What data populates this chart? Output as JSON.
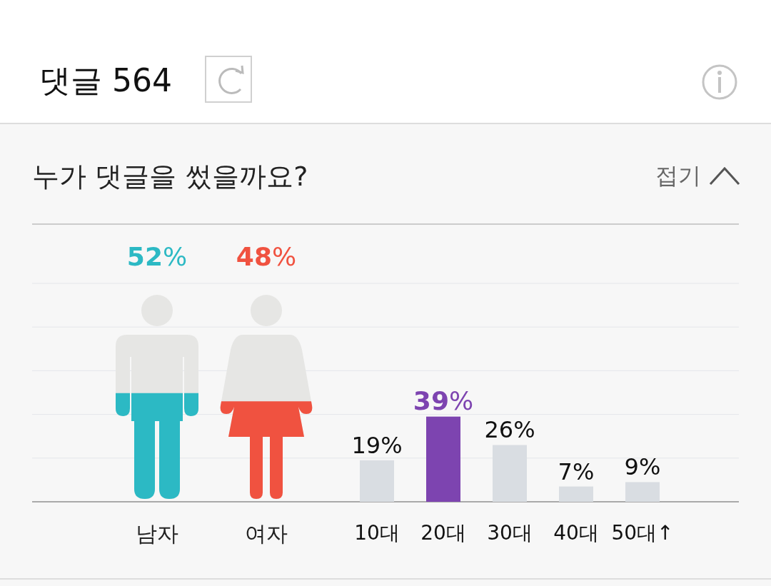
{
  "chart_data": [
    {
      "type": "other",
      "title": "댓글 564",
      "subtitle": "누가 댓글을 썼을까요?",
      "annotations": [
        "접기"
      ],
      "categories": [
        "남자",
        "여자"
      ],
      "values": [
        52,
        48
      ],
      "colors": [
        "#2cb9c4",
        "#f05240"
      ],
      "value_labels": [
        "52%",
        "48%"
      ]
    },
    {
      "type": "bar",
      "categories": [
        "10대",
        "20대",
        "30대",
        "40대",
        "50대↑"
      ],
      "values": [
        19,
        39,
        26,
        7,
        9
      ],
      "colors": [
        "#d9dde2",
        "#7d44b0",
        "#d9dde2",
        "#d9dde2",
        "#d9dde2"
      ],
      "value_labels": [
        "19%",
        "39%",
        "26%",
        "7%",
        "9%"
      ],
      "ylim": [
        0,
        100
      ],
      "yticks": [
        {
          "value": 0,
          "label": null
        },
        {
          "value": 20,
          "label": null
        },
        {
          "value": 40,
          "label": null
        },
        {
          "value": 60,
          "label": null
        },
        {
          "value": 80,
          "label": null
        },
        {
          "value": 100,
          "label": null
        }
      ],
      "grid": "y"
    }
  ]
}
